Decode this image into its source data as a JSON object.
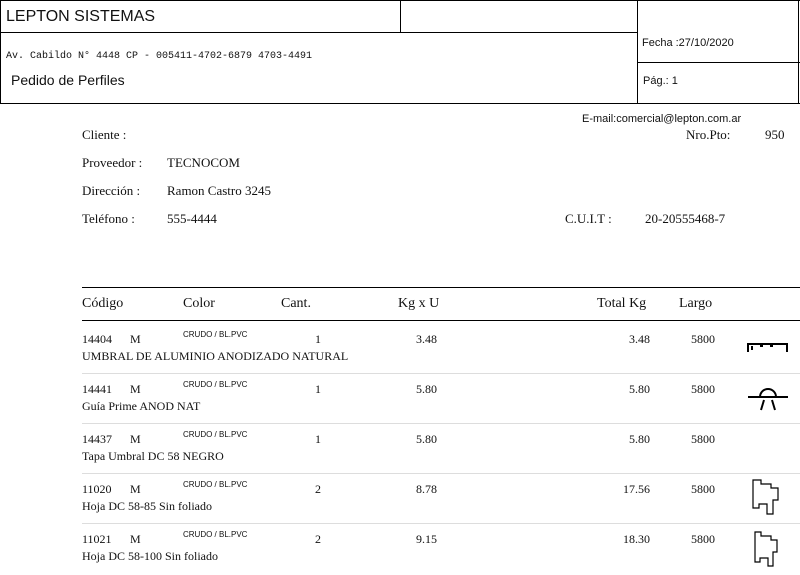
{
  "header": {
    "company": "LEPTON SISTEMAS",
    "address": "Av. Cabildo N° 4448 CP - 005411-4702-6879 4703-4491",
    "doc_title": "Pedido de Perfiles",
    "date": "Fecha :27/10/2020",
    "page": "Pág.: 1"
  },
  "info": {
    "email": "E-mail:comercial@lepton.com.ar",
    "client_label": "Cliente :",
    "nro_pto_label": "Nro.Pto:",
    "nro_pto": "950",
    "supplier_label": "Proveedor :",
    "supplier": "TECNOCOM",
    "address_label": "Dirección :",
    "address": "Ramon Castro 3245",
    "phone_label": "Teléfono :",
    "phone": "555-4444",
    "cuit_label": "C.U.I.T :",
    "cuit": "20-20555468-7"
  },
  "table": {
    "columns": [
      "Código",
      "Color",
      "Cant.",
      "Kg x U",
      "Total Kg",
      "Largo"
    ],
    "rows": [
      {
        "code": "14404",
        "unit": "M",
        "color": "CRUDO / BL.PVC",
        "qty": "1",
        "kg_per_unit": "3.48",
        "total_kg": "3.48",
        "length": "5800",
        "description": "UMBRAL DE ALUMINIO ANODIZADO NATURAL"
      },
      {
        "code": "14441",
        "unit": "M",
        "color": "CRUDO / BL.PVC",
        "qty": "1",
        "kg_per_unit": "5.80",
        "total_kg": "5.80",
        "length": "5800",
        "description": "Guía Prime ANOD NAT"
      },
      {
        "code": "14437",
        "unit": "M",
        "color": "CRUDO / BL.PVC",
        "qty": "1",
        "kg_per_unit": "5.80",
        "total_kg": "5.80",
        "length": "5800",
        "description": "Tapa Umbral DC 58 NEGRO"
      },
      {
        "code": "11020",
        "unit": "M",
        "color": "CRUDO / BL.PVC",
        "qty": "2",
        "kg_per_unit": "8.78",
        "total_kg": "17.56",
        "length": "5800",
        "description": "Hoja DC 58-85 Sin foliado"
      },
      {
        "code": "11021",
        "unit": "M",
        "color": "CRUDO / BL.PVC",
        "qty": "2",
        "kg_per_unit": "9.15",
        "total_kg": "18.30",
        "length": "5800",
        "description": "Hoja DC 58-100 Sin foliado"
      }
    ]
  }
}
